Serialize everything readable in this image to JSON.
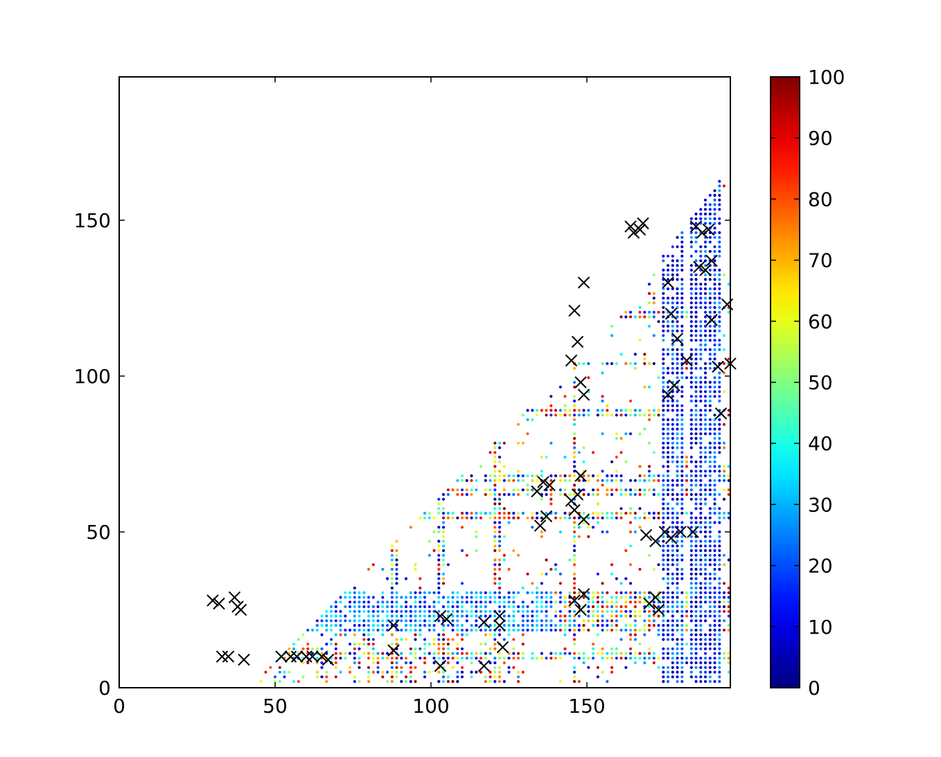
{
  "chart_data": {
    "type": "scatter",
    "title": "",
    "xlabel": "",
    "ylabel": "",
    "xlim": [
      0,
      196
    ],
    "ylim": [
      0,
      196
    ],
    "x_ticks": [
      0,
      50,
      100,
      150
    ],
    "y_ticks": [
      0,
      50,
      100,
      150
    ],
    "x_tick_labels": [
      "0",
      "50",
      "100",
      "150"
    ],
    "y_tick_labels": [
      "0",
      "50",
      "100",
      "150"
    ],
    "grid": false,
    "colormap": "jet",
    "color_range": [
      0,
      100
    ],
    "colorbar_ticks": [
      0,
      10,
      20,
      30,
      40,
      50,
      60,
      70,
      80,
      90,
      100
    ],
    "colorbar_tick_labels": [
      "0",
      "10",
      "20",
      "30",
      "40",
      "50",
      "60",
      "70",
      "80",
      "90",
      "100"
    ],
    "colorbar_position": "right",
    "point_region": "upper triangle, y roughly below x, dense lattice of small colored dots over integer (x, y) grid from x≈20 to 196",
    "series": [
      {
        "marker": "x",
        "color": "#000000",
        "points": [
          [
            30,
            28
          ],
          [
            32,
            27
          ],
          [
            37,
            29
          ],
          [
            38,
            26
          ],
          [
            39,
            25
          ],
          [
            33,
            10
          ],
          [
            35,
            10
          ],
          [
            40,
            9
          ],
          [
            52,
            10
          ],
          [
            55,
            10
          ],
          [
            57,
            10
          ],
          [
            60,
            10
          ],
          [
            62,
            10
          ],
          [
            65,
            10
          ],
          [
            67,
            9
          ],
          [
            88,
            20
          ],
          [
            88,
            12
          ],
          [
            103,
            23
          ],
          [
            105,
            22
          ],
          [
            103,
            7
          ],
          [
            117,
            21
          ],
          [
            117,
            7
          ],
          [
            122,
            23
          ],
          [
            122,
            20
          ],
          [
            123,
            13
          ],
          [
            134,
            63
          ],
          [
            136,
            66
          ],
          [
            138,
            65
          ],
          [
            135,
            52
          ],
          [
            137,
            55
          ],
          [
            145,
            105
          ],
          [
            146,
            121
          ],
          [
            147,
            111
          ],
          [
            148,
            98
          ],
          [
            149,
            94
          ],
          [
            149,
            130
          ],
          [
            145,
            60
          ],
          [
            146,
            57
          ],
          [
            147,
            62
          ],
          [
            148,
            68
          ],
          [
            149,
            54
          ],
          [
            146,
            28
          ],
          [
            148,
            25
          ],
          [
            149,
            30
          ],
          [
            164,
            148
          ],
          [
            165,
            146
          ],
          [
            167,
            147
          ],
          [
            168,
            149
          ],
          [
            169,
            49
          ],
          [
            172,
            47
          ],
          [
            175,
            50
          ],
          [
            177,
            48
          ],
          [
            180,
            50
          ],
          [
            184,
            50
          ],
          [
            170,
            27
          ],
          [
            172,
            29
          ],
          [
            173,
            25
          ],
          [
            176,
            94
          ],
          [
            178,
            97
          ],
          [
            176,
            130
          ],
          [
            177,
            120
          ],
          [
            179,
            112
          ],
          [
            182,
            105
          ],
          [
            185,
            148
          ],
          [
            187,
            146
          ],
          [
            189,
            147
          ],
          [
            186,
            135
          ],
          [
            188,
            134
          ],
          [
            190,
            137
          ],
          [
            190,
            118
          ],
          [
            192,
            103
          ],
          [
            193,
            88
          ],
          [
            195,
            123
          ],
          [
            196,
            104
          ]
        ]
      }
    ]
  }
}
